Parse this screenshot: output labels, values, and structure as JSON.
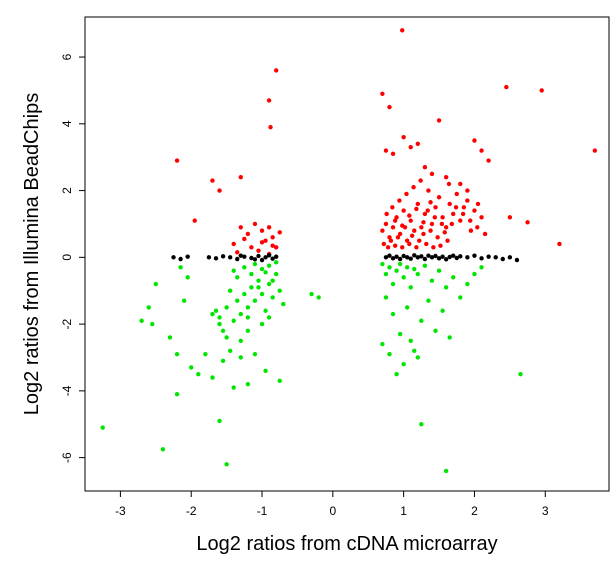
{
  "chart_data": {
    "type": "scatter",
    "title": "",
    "xlabel": "Log2 ratios from cDNA microarray",
    "ylabel": "Log2 ratios from Illumina BeadChips",
    "xlim": [
      -3.5,
      3.9
    ],
    "ylim": [
      -7.0,
      7.2
    ],
    "xticks": [
      -3,
      -2,
      -1,
      0,
      1,
      2,
      3
    ],
    "yticks": [
      -6,
      -4,
      -2,
      0,
      2,
      4,
      6
    ],
    "xtick_labels": [
      "-3",
      "-2",
      "-1",
      "0",
      "1",
      "2",
      "3"
    ],
    "ytick_labels": [
      "-6",
      "-4",
      "-2",
      "0",
      "2",
      "4",
      "6"
    ],
    "grid": false,
    "legend": "none",
    "colors": {
      "up": "#ff0000",
      "down": "#00e600",
      "neutral": "#000000"
    },
    "series": [
      {
        "color": "#ff0000",
        "points": [
          [
            0.98,
            6.8
          ],
          [
            -0.8,
            5.6
          ],
          [
            -0.9,
            4.7
          ],
          [
            -0.88,
            3.9
          ],
          [
            0.7,
            4.9
          ],
          [
            0.8,
            4.5
          ],
          [
            1.5,
            4.1
          ],
          [
            2.45,
            5.1
          ],
          [
            2.95,
            5.0
          ],
          [
            3.7,
            3.2
          ],
          [
            -2.2,
            2.9
          ],
          [
            -1.3,
            2.4
          ],
          [
            -1.7,
            2.3
          ],
          [
            -1.6,
            2.0
          ],
          [
            -1.95,
            1.1
          ],
          [
            1.0,
            3.6
          ],
          [
            1.2,
            3.4
          ],
          [
            2.0,
            3.5
          ],
          [
            2.1,
            3.2
          ],
          [
            2.2,
            2.9
          ],
          [
            0.75,
            3.2
          ],
          [
            0.85,
            3.1
          ],
          [
            1.1,
            3.3
          ],
          [
            1.3,
            2.7
          ],
          [
            1.4,
            2.5
          ],
          [
            1.8,
            2.2
          ],
          [
            1.6,
            2.4
          ],
          [
            1.9,
            2.0
          ],
          [
            2.5,
            1.2
          ],
          [
            2.75,
            1.05
          ],
          [
            3.2,
            0.4
          ],
          [
            -1.3,
            0.9
          ],
          [
            -1.1,
            1.0
          ],
          [
            -1.2,
            0.7
          ],
          [
            -1.0,
            0.8
          ],
          [
            -0.9,
            0.9
          ],
          [
            -0.85,
            0.6
          ],
          [
            -1.4,
            0.4
          ],
          [
            -1.15,
            0.3
          ],
          [
            -0.95,
            0.5
          ],
          [
            -0.8,
            0.3
          ],
          [
            -1.05,
            0.2
          ],
          [
            -1.25,
            0.55
          ],
          [
            -0.75,
            0.75
          ],
          [
            -1.35,
            0.15
          ],
          [
            -0.9,
            0.1
          ],
          [
            -1.0,
            0.45
          ],
          [
            -0.85,
            0.35
          ],
          [
            0.7,
            0.8
          ],
          [
            0.75,
            1.0
          ],
          [
            0.8,
            0.6
          ],
          [
            0.85,
            0.9
          ],
          [
            0.9,
            1.2
          ],
          [
            0.95,
            0.7
          ],
          [
            1.0,
            1.4
          ],
          [
            1.05,
            0.5
          ],
          [
            1.1,
            1.1
          ],
          [
            1.15,
            0.8
          ],
          [
            1.2,
            1.6
          ],
          [
            1.25,
            0.9
          ],
          [
            1.3,
            1.3
          ],
          [
            1.35,
            2.0
          ],
          [
            1.4,
            1.0
          ],
          [
            1.45,
            1.5
          ],
          [
            1.5,
            1.8
          ],
          [
            1.55,
            1.2
          ],
          [
            1.6,
            0.9
          ],
          [
            1.65,
            1.6
          ],
          [
            1.7,
            1.3
          ],
          [
            1.75,
            1.9
          ],
          [
            1.8,
            1.1
          ],
          [
            1.85,
            1.5
          ],
          [
            1.9,
            1.7
          ],
          [
            1.95,
            0.8
          ],
          [
            2.0,
            1.4
          ],
          [
            2.05,
            1.6
          ],
          [
            2.1,
            1.2
          ],
          [
            2.15,
            0.7
          ],
          [
            0.72,
            0.4
          ],
          [
            0.78,
            0.3
          ],
          [
            0.82,
            0.5
          ],
          [
            0.88,
            0.35
          ],
          [
            0.92,
            0.6
          ],
          [
            0.98,
            0.3
          ],
          [
            1.02,
            0.9
          ],
          [
            1.08,
            0.4
          ],
          [
            1.12,
            0.65
          ],
          [
            1.18,
            0.3
          ],
          [
            1.22,
            0.5
          ],
          [
            1.28,
            0.7
          ],
          [
            1.32,
            0.4
          ],
          [
            1.38,
            0.8
          ],
          [
            1.42,
            0.3
          ],
          [
            1.48,
            0.6
          ],
          [
            1.52,
            0.35
          ],
          [
            1.58,
            0.75
          ],
          [
            1.62,
            0.5
          ],
          [
            1.68,
            1.0
          ],
          [
            0.76,
            1.3
          ],
          [
            0.84,
            1.5
          ],
          [
            0.94,
            1.7
          ],
          [
            1.04,
            1.9
          ],
          [
            1.14,
            2.1
          ],
          [
            1.24,
            2.3
          ],
          [
            1.34,
            1.4
          ],
          [
            1.44,
            1.2
          ],
          [
            1.54,
            1.0
          ],
          [
            1.64,
            2.2
          ],
          [
            1.74,
            1.5
          ],
          [
            1.84,
            1.3
          ],
          [
            1.94,
            1.1
          ],
          [
            2.04,
            0.9
          ],
          [
            0.88,
            1.1
          ],
          [
            0.98,
            0.95
          ],
          [
            1.08,
            1.25
          ],
          [
            1.18,
            1.45
          ],
          [
            1.28,
            1.05
          ],
          [
            1.38,
            1.65
          ]
        ]
      },
      {
        "color": "#00e600",
        "points": [
          [
            -3.25,
            -5.1
          ],
          [
            -2.4,
            -5.75
          ],
          [
            -1.5,
            -6.2
          ],
          [
            -1.6,
            -4.9
          ],
          [
            1.6,
            -6.4
          ],
          [
            1.25,
            -5.0
          ],
          [
            2.65,
            -3.5
          ],
          [
            -2.2,
            -4.1
          ],
          [
            -1.4,
            -3.9
          ],
          [
            -1.2,
            -3.8
          ],
          [
            -0.75,
            -3.7
          ],
          [
            -2.5,
            -0.8
          ],
          [
            -2.6,
            -1.5
          ],
          [
            -2.7,
            -1.9
          ],
          [
            -2.55,
            -2.0
          ],
          [
            -2.3,
            -2.4
          ],
          [
            -2.2,
            -2.9
          ],
          [
            -2.0,
            -3.3
          ],
          [
            -1.9,
            -3.5
          ],
          [
            -1.8,
            -2.9
          ],
          [
            -1.7,
            -3.6
          ],
          [
            -1.55,
            -3.1
          ],
          [
            -1.45,
            -2.8
          ],
          [
            -1.3,
            -3.0
          ],
          [
            -1.1,
            -2.9
          ],
          [
            -0.95,
            -3.4
          ],
          [
            -2.1,
            -1.3
          ],
          [
            -2.05,
            -0.6
          ],
          [
            -2.15,
            -0.3
          ],
          [
            -0.3,
            -1.1
          ],
          [
            -0.2,
            -1.2
          ],
          [
            -1.6,
            -1.8
          ],
          [
            -1.5,
            -1.5
          ],
          [
            -1.4,
            -1.9
          ],
          [
            -1.35,
            -1.3
          ],
          [
            -1.3,
            -1.7
          ],
          [
            -1.25,
            -1.1
          ],
          [
            -1.2,
            -1.5
          ],
          [
            -1.15,
            -0.9
          ],
          [
            -1.1,
            -1.3
          ],
          [
            -1.05,
            -0.7
          ],
          [
            -1.0,
            -1.1
          ],
          [
            -0.95,
            -1.6
          ],
          [
            -0.9,
            -0.8
          ],
          [
            -0.85,
            -1.2
          ],
          [
            -0.8,
            -0.5
          ],
          [
            -0.75,
            -1.0
          ],
          [
            -1.45,
            -1.0
          ],
          [
            -1.55,
            -2.2
          ],
          [
            -1.65,
            -1.6
          ],
          [
            -1.2,
            -2.2
          ],
          [
            -1.0,
            -2.0
          ],
          [
            -0.9,
            -1.8
          ],
          [
            -1.3,
            -2.5
          ],
          [
            -1.4,
            -0.4
          ],
          [
            -1.25,
            -0.3
          ],
          [
            -1.1,
            -0.2
          ],
          [
            -1.0,
            -0.35
          ],
          [
            -0.9,
            -0.25
          ],
          [
            -0.8,
            -0.15
          ],
          [
            -1.35,
            -0.6
          ],
          [
            -1.15,
            -0.5
          ],
          [
            -0.95,
            -0.45
          ],
          [
            -0.85,
            -0.7
          ],
          [
            -1.05,
            -0.9
          ],
          [
            -1.2,
            -1.8
          ],
          [
            -1.5,
            -2.4
          ],
          [
            -1.6,
            -2.0
          ],
          [
            -1.7,
            -1.7
          ],
          [
            -0.7,
            -1.4
          ],
          [
            0.7,
            -0.2
          ],
          [
            0.75,
            -0.5
          ],
          [
            0.8,
            -0.3
          ],
          [
            0.85,
            -0.8
          ],
          [
            0.9,
            -0.4
          ],
          [
            0.95,
            -0.2
          ],
          [
            1.0,
            -0.6
          ],
          [
            1.05,
            -0.3
          ],
          [
            1.1,
            -0.9
          ],
          [
            1.15,
            -0.35
          ],
          [
            1.2,
            -0.5
          ],
          [
            1.3,
            -0.25
          ],
          [
            1.4,
            -0.7
          ],
          [
            1.5,
            -0.4
          ],
          [
            1.6,
            -0.9
          ],
          [
            1.7,
            -0.6
          ],
          [
            1.8,
            -1.2
          ],
          [
            1.9,
            -0.8
          ],
          [
            2.0,
            -0.5
          ],
          [
            2.1,
            -0.3
          ],
          [
            0.75,
            -1.2
          ],
          [
            0.85,
            -1.7
          ],
          [
            0.95,
            -2.3
          ],
          [
            1.05,
            -1.5
          ],
          [
            1.15,
            -2.8
          ],
          [
            1.25,
            -1.9
          ],
          [
            1.35,
            -1.3
          ],
          [
            1.45,
            -2.2
          ],
          [
            1.55,
            -1.6
          ],
          [
            1.65,
            -2.4
          ],
          [
            0.7,
            -2.6
          ],
          [
            0.8,
            -2.9
          ],
          [
            1.0,
            -3.2
          ],
          [
            1.1,
            -2.5
          ],
          [
            1.2,
            -3.0
          ],
          [
            0.9,
            -3.5
          ]
        ]
      },
      {
        "color": "#000000",
        "points": [
          [
            -2.25,
            0.0
          ],
          [
            -2.15,
            -0.05
          ],
          [
            -2.05,
            0.02
          ],
          [
            -1.75,
            0.0
          ],
          [
            -1.65,
            -0.03
          ],
          [
            -1.55,
            0.03
          ],
          [
            -1.45,
            0.0
          ],
          [
            -1.35,
            -0.05
          ],
          [
            -1.25,
            0.02
          ],
          [
            -1.15,
            -0.02
          ],
          [
            -1.05,
            0.04
          ],
          [
            -0.95,
            0.0
          ],
          [
            -0.85,
            -0.04
          ],
          [
            -0.8,
            0.02
          ],
          [
            -1.1,
            -0.06
          ],
          [
            -1.3,
            0.05
          ],
          [
            -0.9,
            0.06
          ],
          [
            -1.0,
            -0.08
          ],
          [
            0.75,
            0.0
          ],
          [
            0.8,
            0.05
          ],
          [
            0.85,
            -0.03
          ],
          [
            0.9,
            0.02
          ],
          [
            0.95,
            -0.05
          ],
          [
            1.0,
            0.04
          ],
          [
            1.05,
            0.0
          ],
          [
            1.1,
            -0.04
          ],
          [
            1.15,
            0.06
          ],
          [
            1.2,
            0.0
          ],
          [
            1.25,
            0.03
          ],
          [
            1.3,
            -0.05
          ],
          [
            1.35,
            0.05
          ],
          [
            1.4,
            0.0
          ],
          [
            1.45,
            0.04
          ],
          [
            1.5,
            -0.03
          ],
          [
            1.55,
            0.02
          ],
          [
            1.6,
            -0.06
          ],
          [
            1.65,
            0.01
          ],
          [
            1.7,
            0.05
          ],
          [
            1.75,
            -0.02
          ],
          [
            1.8,
            0.03
          ],
          [
            1.9,
            0.0
          ],
          [
            2.0,
            0.05
          ],
          [
            2.1,
            -0.03
          ],
          [
            2.2,
            0.02
          ],
          [
            2.3,
            0.0
          ],
          [
            2.4,
            -0.05
          ],
          [
            2.5,
            0.0
          ],
          [
            2.6,
            -0.08
          ]
        ]
      }
    ]
  }
}
